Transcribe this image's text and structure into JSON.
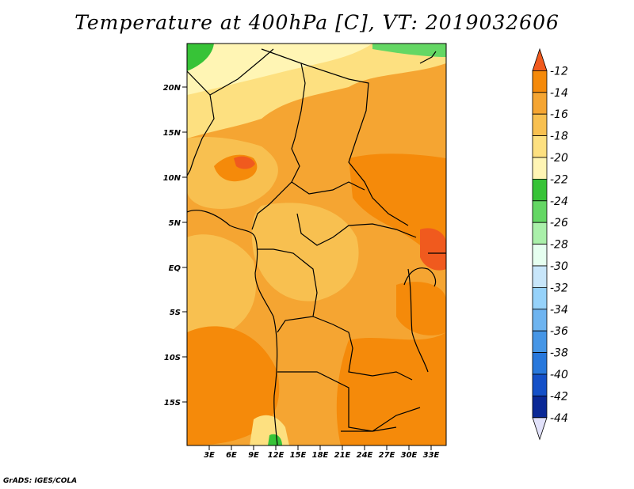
{
  "title": "Temperature at 400hPa [C], VT: 2019032606",
  "credit": "GrADS: IGES/COLA",
  "map": {
    "lat_ticks": [
      "20N",
      "15N",
      "10N",
      "5N",
      "EQ",
      "5S",
      "10S",
      "15S"
    ],
    "lon_ticks": [
      "3E",
      "6E",
      "9E",
      "12E",
      "15E",
      "18E",
      "21E",
      "24E",
      "27E",
      "30E",
      "33E"
    ]
  },
  "colorbar": {
    "labels": [
      "-12",
      "-14",
      "-16",
      "-18",
      "-20",
      "-22",
      "-24",
      "-26",
      "-28",
      "-30",
      "-32",
      "-34",
      "-36",
      "-38",
      "-40",
      "-42",
      "-44"
    ],
    "colors": [
      "#f05a1e",
      "#f58a0a",
      "#f5a532",
      "#f8c050",
      "#fde080",
      "#fff5b4",
      "#37c337",
      "#64d764",
      "#aaf0aa",
      "#e6fff0",
      "#c8e6fa",
      "#96d2fa",
      "#6eb4f0",
      "#4696e6",
      "#2878dc",
      "#1450c8",
      "#0a2896",
      "#e1e1fa"
    ]
  }
}
